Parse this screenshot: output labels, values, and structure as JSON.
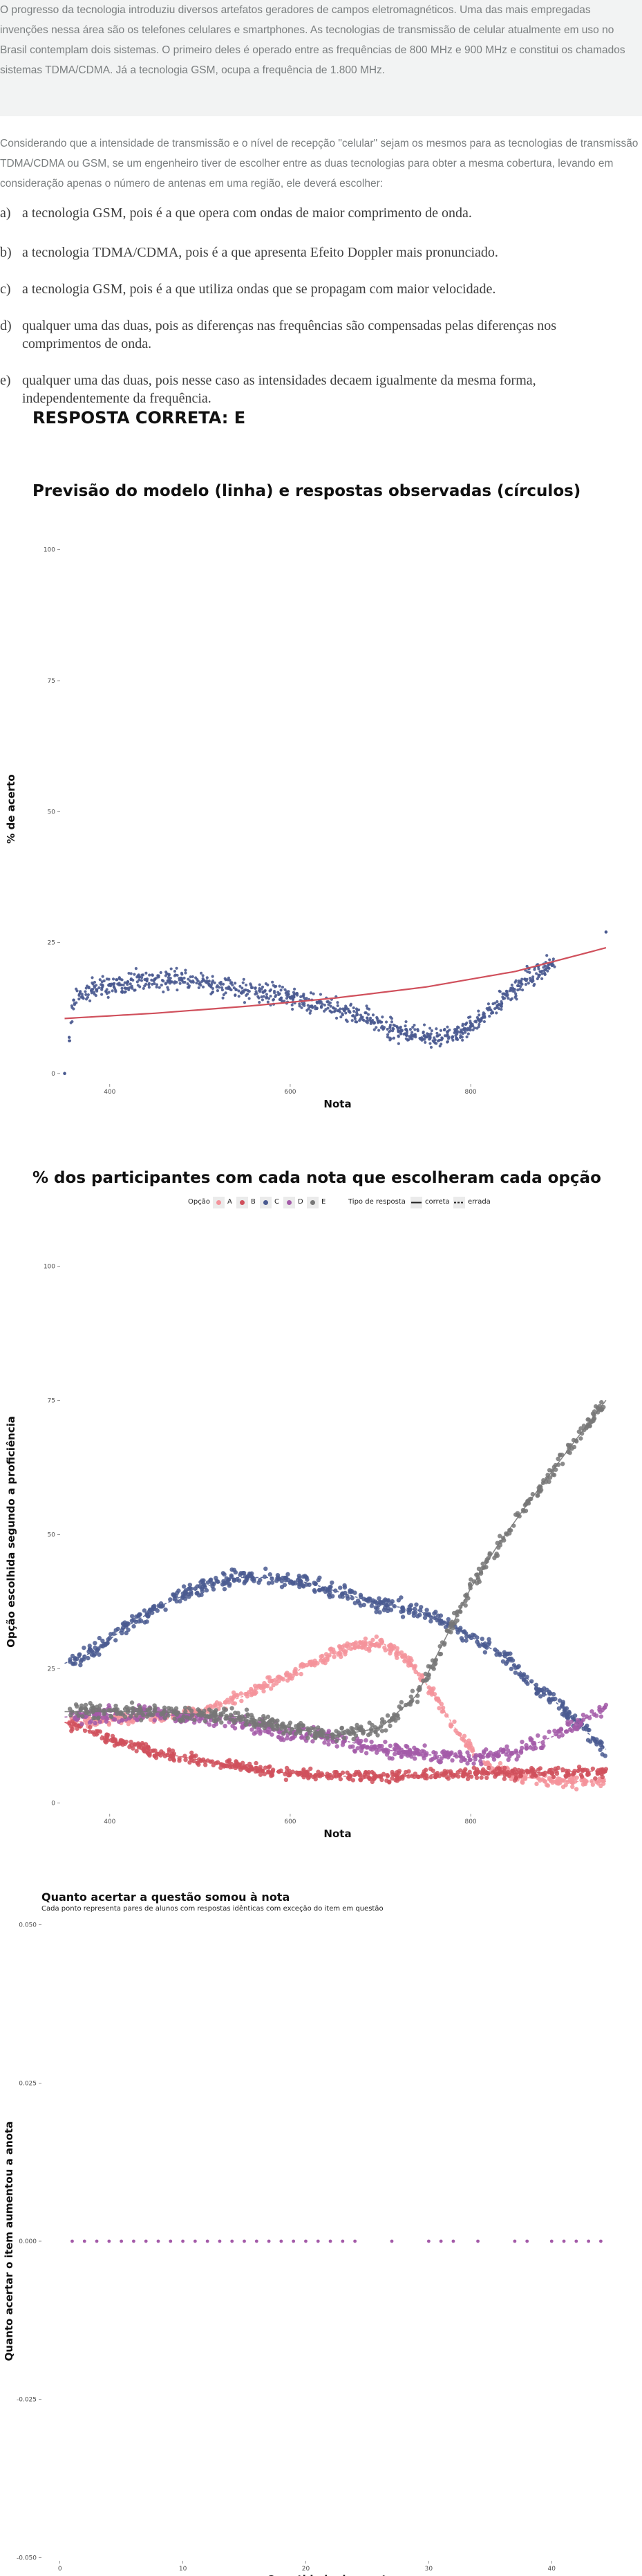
{
  "question": {
    "context": "O progresso da tecnologia introduziu diversos artefatos geradores de campos eletromagnéticos. Uma das mais empregadas invenções nessa área são os telefones celulares e smartphones. As tecnologias de transmissão de celular atualmente em uso no Brasil contemplam dois sistemas. O primeiro deles é operado entre as frequências de 800 MHz e 900 MHz e constitui os chamados sistemas TDMA/CDMA. Já a tecnologia GSM, ocupa a frequência de 1.800 MHz.",
    "command": "Considerando que a intensidade de transmissão e o nível de recepção \"celular\" sejam os mesmos para as tecnologias de transmissão TDMA/CDMA ou GSM, se um engenheiro tiver de escolher entre as duas tecnologias para obter a mesma cobertura, levando em consideração apenas o número de antenas em uma região, ele deverá escolher:",
    "options": [
      {
        "letter": "a)",
        "text": "a tecnologia GSM, pois é a que opera com ondas de maior comprimento de onda."
      },
      {
        "letter": "b)",
        "text": "a tecnologia TDMA/CDMA, pois é a que apresenta Efeito Doppler mais pronunciado."
      },
      {
        "letter": "c)",
        "text": "a tecnologia GSM, pois é a que utiliza ondas que se propagam com maior velocidade."
      },
      {
        "letter": "d)",
        "text": "qualquer uma das duas, pois as diferenças nas frequências são compensadas pelas diferenças nos comprimentos de onda."
      },
      {
        "letter": "e)",
        "text": "qualquer uma das duas, pois nesse caso as intensidades decaem igualmente da mesma forma, independentemente da frequência."
      }
    ],
    "answer_label": "RESPOSTA CORRETA: E"
  },
  "chart_data": [
    {
      "type": "scatter",
      "title": "Previsão do modelo (linha) e respostas observadas (círculos)",
      "xlabel": "Nota",
      "ylabel": "% de acerto",
      "x_ticks": [
        400,
        600,
        800
      ],
      "y_ticks": [
        0,
        25,
        50,
        75,
        100
      ],
      "xlim": [
        345,
        960
      ],
      "ylim": [
        -2,
        103
      ],
      "color_points": "#4a5a90",
      "color_line": "#d0505c",
      "model_line": {
        "x": [
          350,
          450,
          550,
          650,
          750,
          850,
          950
        ],
        "y": [
          10.5,
          11.5,
          12.8,
          14.4,
          16.5,
          19.5,
          24.0
        ]
      },
      "observed": [
        {
          "x": 350,
          "y": 0
        },
        {
          "x": 360,
          "y": 14
        },
        {
          "x": 380,
          "y": 16
        },
        {
          "x": 400,
          "y": 17
        },
        {
          "x": 420,
          "y": 17.5
        },
        {
          "x": 450,
          "y": 18
        },
        {
          "x": 480,
          "y": 17.8
        },
        {
          "x": 510,
          "y": 17
        },
        {
          "x": 540,
          "y": 16
        },
        {
          "x": 570,
          "y": 15.5
        },
        {
          "x": 600,
          "y": 14.5
        },
        {
          "x": 630,
          "y": 13.5
        },
        {
          "x": 660,
          "y": 12
        },
        {
          "x": 690,
          "y": 10
        },
        {
          "x": 720,
          "y": 8
        },
        {
          "x": 750,
          "y": 7
        },
        {
          "x": 780,
          "y": 7
        },
        {
          "x": 800,
          "y": 9
        },
        {
          "x": 830,
          "y": 13
        },
        {
          "x": 860,
          "y": 18
        },
        {
          "x": 890,
          "y": 21
        },
        {
          "x": 950,
          "y": 27
        }
      ]
    },
    {
      "type": "scatter",
      "title": "% dos participantes com cada nota que escolheram cada opção",
      "xlabel": "Nota",
      "ylabel": "Opção escolhida segundo a proficiência",
      "x_ticks": [
        400,
        600,
        800
      ],
      "y_ticks": [
        0,
        25,
        50,
        75,
        100
      ],
      "xlim": [
        345,
        960
      ],
      "ylim": [
        -2,
        103
      ],
      "legend": {
        "option_title": "Opção",
        "option_labels": [
          "A",
          "B",
          "C",
          "D",
          "E"
        ],
        "type_title": "Tipo de resposta",
        "type_labels": [
          "correta",
          "errada"
        ],
        "placement": "top"
      },
      "series": [
        {
          "name": "A",
          "color": "#f4939b",
          "x": [
            350,
            400,
            450,
            500,
            550,
            600,
            650,
            700,
            730,
            760,
            790,
            820,
            850,
            900,
            950
          ],
          "y": [
            15,
            15.5,
            16,
            17,
            20,
            24,
            28,
            30,
            27,
            20,
            12,
            7,
            5,
            4,
            4
          ]
        },
        {
          "name": "B",
          "color": "#d0505c",
          "x": [
            350,
            400,
            450,
            500,
            550,
            600,
            650,
            700,
            750,
            800,
            850,
            900,
            950
          ],
          "y": [
            15,
            12,
            9.5,
            8,
            6.5,
            5.5,
            5,
            5,
            5.2,
            5.5,
            5.5,
            5.8,
            6
          ]
        },
        {
          "name": "C",
          "color": "#4a5a90",
          "x": [
            350,
            380,
            420,
            460,
            500,
            540,
            580,
            620,
            660,
            700,
            740,
            780,
            810,
            840,
            870,
            900,
            930,
            950
          ],
          "y": [
            26,
            28,
            33,
            37,
            40,
            42,
            42,
            41,
            39,
            37,
            36,
            33,
            30,
            27,
            22,
            18,
            13,
            10
          ]
        },
        {
          "name": "D",
          "color": "#a35aa8",
          "x": [
            350,
            400,
            450,
            500,
            550,
            600,
            650,
            700,
            750,
            800,
            850,
            900,
            950
          ],
          "y": [
            16,
            16.5,
            16.5,
            16,
            15,
            13,
            12,
            10,
            9,
            8.5,
            9.5,
            13,
            18
          ]
        },
        {
          "name": "E",
          "color": "#777777",
          "x": [
            350,
            400,
            450,
            500,
            550,
            600,
            650,
            700,
            740,
            770,
            800,
            830,
            860,
            900,
            950
          ],
          "y": [
            17,
            17,
            17,
            16.5,
            16,
            14,
            12.5,
            14,
            20,
            30,
            40,
            48,
            55,
            64,
            75
          ]
        }
      ]
    },
    {
      "type": "scatter",
      "title": "Quanto acertar a questão somou à nota",
      "subtitle": "Cada ponto representa pares de alunos com respostas idênticas com exceção do item em questão",
      "xlabel": "Quantidade de acertos",
      "ylabel": "Quanto acertar o item aumentou a anota",
      "x_ticks": [
        0,
        10,
        20,
        30,
        40
      ],
      "y_ticks": [
        -0.05,
        -0.025,
        0.0,
        0.025,
        0.05
      ],
      "y_tick_labels": [
        "-0.050",
        "-0.025",
        "0.000",
        "0.025",
        "0.050"
      ],
      "xlim": [
        -1.5,
        46
      ],
      "ylim": [
        -0.0505,
        0.0505
      ],
      "color_points": "#a35aa8",
      "x": [
        1,
        2,
        3,
        4,
        5,
        6,
        7,
        8,
        9,
        10,
        11,
        12,
        13,
        14,
        15,
        16,
        17,
        18,
        19,
        20,
        21,
        22,
        23,
        24,
        27,
        30,
        31,
        32,
        34,
        37,
        38,
        40,
        41,
        42,
        43,
        44
      ],
      "y": [
        0,
        0,
        0,
        0,
        0,
        0,
        0,
        0,
        0,
        0,
        0,
        0,
        0,
        0,
        0,
        0,
        0,
        0,
        0,
        0,
        0,
        0,
        0,
        0,
        0,
        0,
        0,
        0,
        0,
        0,
        0,
        0,
        0,
        0,
        0,
        0
      ]
    }
  ]
}
